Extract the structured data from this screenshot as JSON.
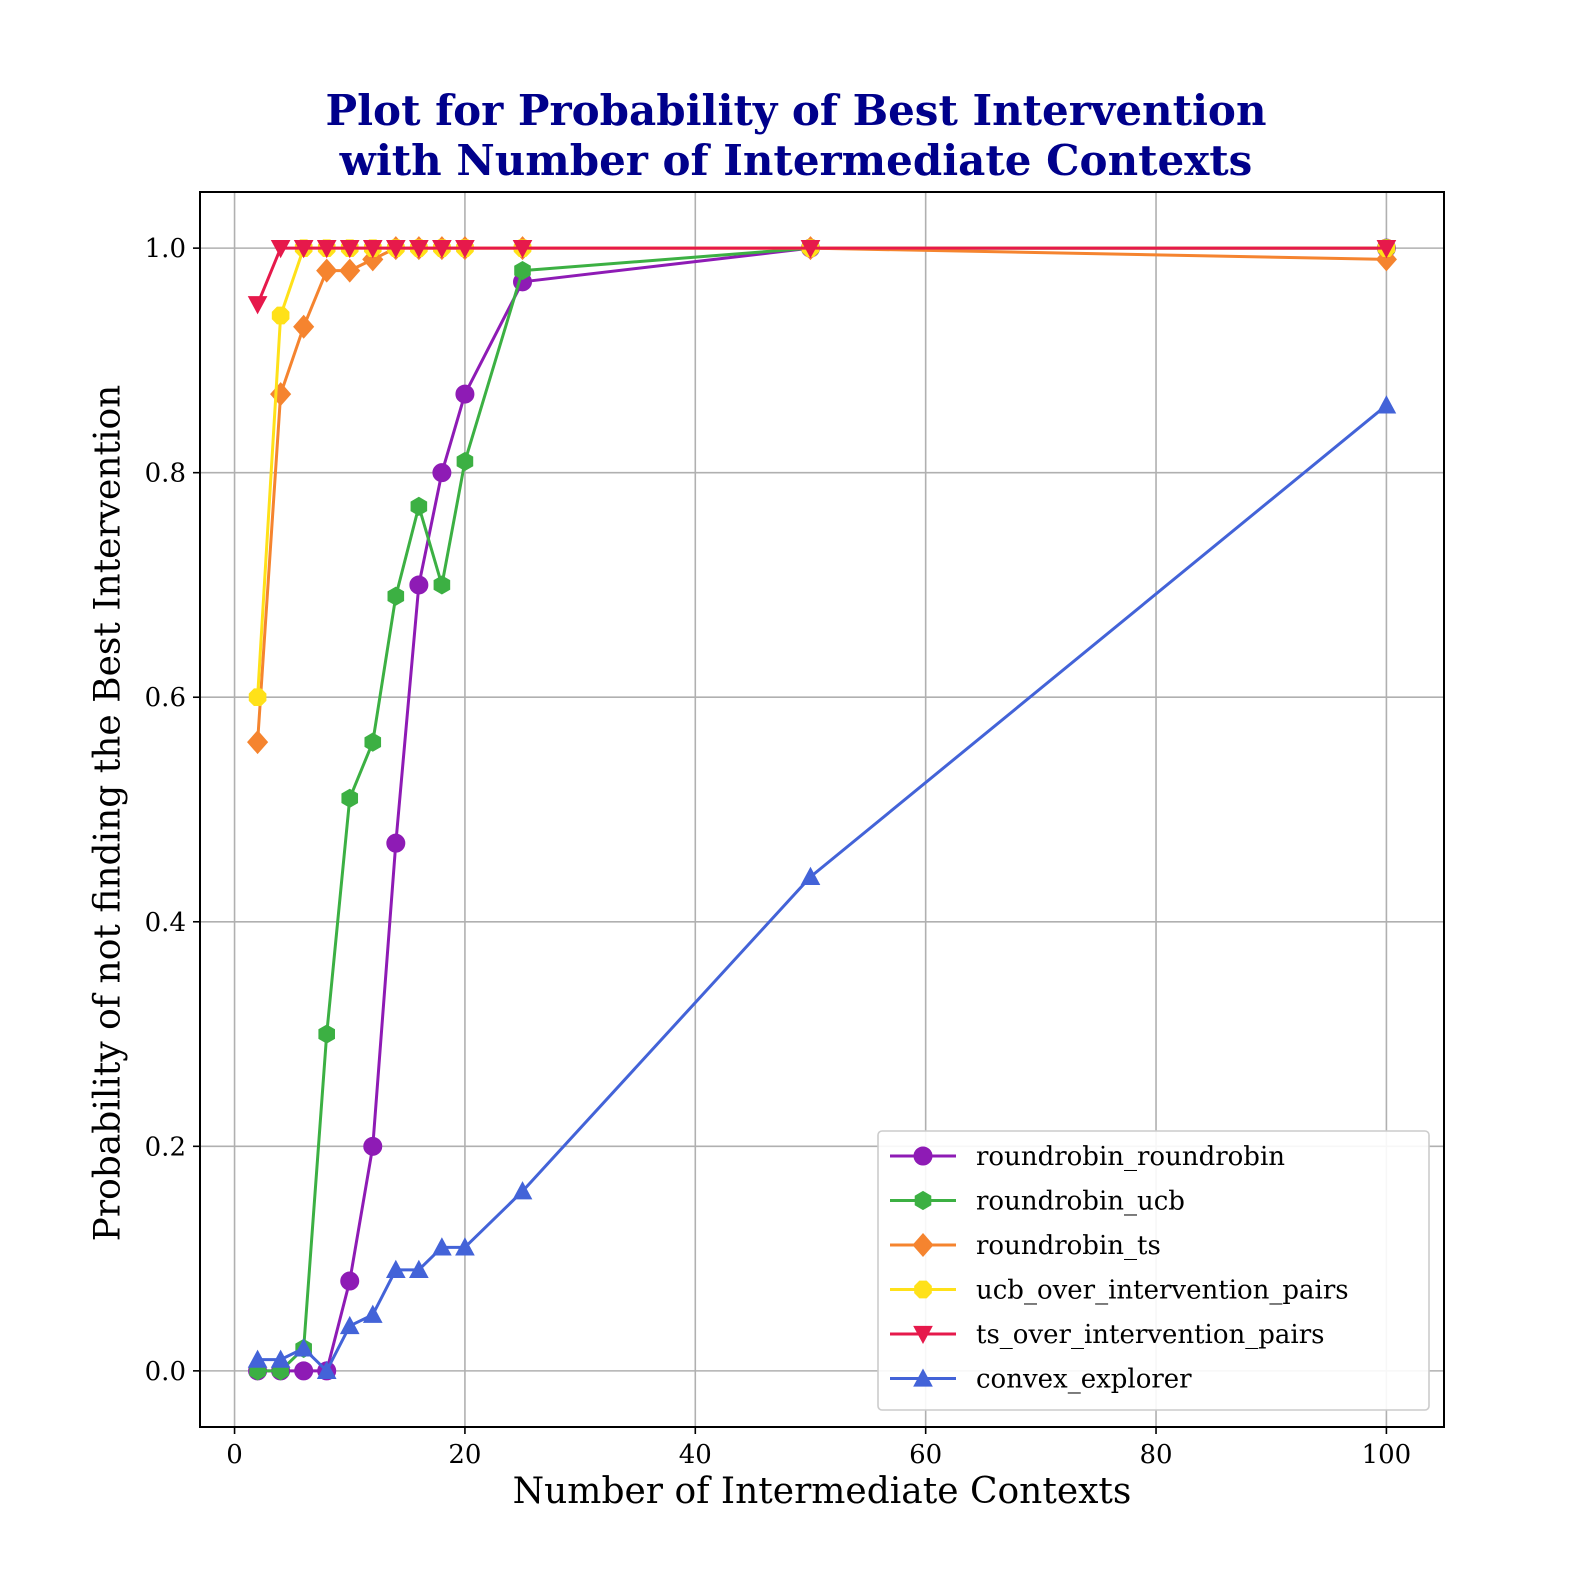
{
  "chart_data": {
    "type": "line",
    "title_line1": "Plot for Probability of Best Intervention",
    "title_line2": "with Number of Intermediate Contexts",
    "xlabel": "Number of Intermediate Contexts",
    "ylabel": "Probability of not finding the Best Intervention",
    "xlim": [
      -3,
      105
    ],
    "ylim": [
      -0.05,
      1.05
    ],
    "xticks": [
      0,
      20,
      40,
      60,
      80,
      100
    ],
    "xtick_labels": [
      "0",
      "20",
      "40",
      "60",
      "80",
      "100"
    ],
    "yticks": [
      0.0,
      0.2,
      0.4,
      0.6,
      0.8,
      1.0
    ],
    "ytick_labels": [
      "0.0",
      "0.2",
      "0.4",
      "0.6",
      "0.8",
      "1.0"
    ],
    "grid": true,
    "legend_position": "lower-right",
    "series": [
      {
        "name": "roundrobin_roundrobin",
        "color": "#8e1bb5",
        "marker": "circle",
        "x": [
          2,
          4,
          6,
          8,
          10,
          12,
          14,
          16,
          18,
          20,
          25,
          50,
          100
        ],
        "y": [
          0.0,
          0.0,
          0.0,
          0.0,
          0.08,
          0.2,
          0.47,
          0.7,
          0.8,
          0.87,
          0.97,
          1.0,
          1.0
        ]
      },
      {
        "name": "roundrobin_ucb",
        "color": "#3cb043",
        "marker": "hexagon",
        "x": [
          2,
          4,
          6,
          8,
          10,
          12,
          14,
          16,
          18,
          20,
          25,
          50,
          100
        ],
        "y": [
          0.0,
          0.0,
          0.02,
          0.3,
          0.51,
          0.56,
          0.69,
          0.77,
          0.7,
          0.81,
          0.98,
          1.0,
          1.0
        ]
      },
      {
        "name": "roundrobin_ts",
        "color": "#f5842f",
        "marker": "diamond",
        "x": [
          2,
          4,
          6,
          8,
          10,
          12,
          14,
          16,
          18,
          20,
          25,
          50,
          100
        ],
        "y": [
          0.56,
          0.87,
          0.93,
          0.98,
          0.98,
          0.99,
          1.0,
          1.0,
          1.0,
          1.0,
          1.0,
          1.0,
          0.99
        ]
      },
      {
        "name": "ucb_over_intervention_pairs",
        "color": "#ffe119",
        "marker": "octagon",
        "x": [
          2,
          4,
          6,
          8,
          10,
          12,
          14,
          16,
          18,
          20,
          25,
          50,
          100
        ],
        "y": [
          0.6,
          0.94,
          1.0,
          1.0,
          1.0,
          1.0,
          1.0,
          1.0,
          1.0,
          1.0,
          1.0,
          1.0,
          1.0
        ]
      },
      {
        "name": "ts_over_intervention_pairs",
        "color": "#e6194b",
        "marker": "triangle-down",
        "x": [
          2,
          4,
          6,
          8,
          10,
          12,
          14,
          16,
          18,
          20,
          25,
          50,
          100
        ],
        "y": [
          0.95,
          1.0,
          1.0,
          1.0,
          1.0,
          1.0,
          1.0,
          1.0,
          1.0,
          1.0,
          1.0,
          1.0,
          1.0
        ]
      },
      {
        "name": "convex_explorer",
        "color": "#4363d8",
        "marker": "triangle-up",
        "x": [
          2,
          4,
          6,
          8,
          10,
          12,
          14,
          16,
          18,
          20,
          25,
          50,
          100
        ],
        "y": [
          0.01,
          0.01,
          0.02,
          0.0,
          0.04,
          0.05,
          0.09,
          0.09,
          0.11,
          0.11,
          0.16,
          0.44,
          0.86
        ]
      }
    ]
  }
}
